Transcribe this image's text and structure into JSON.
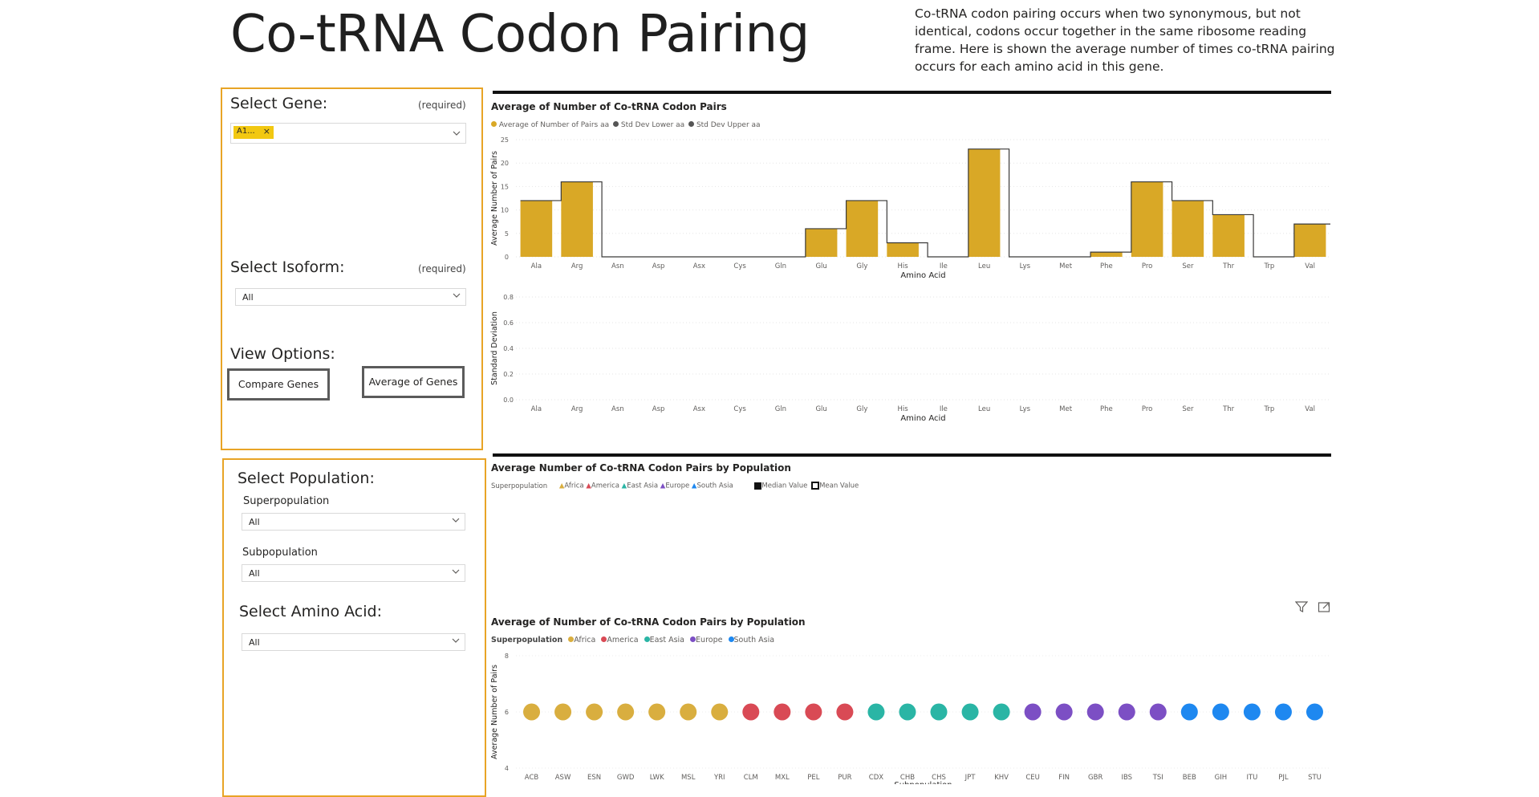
{
  "header": {
    "title": "Co-tRNA Codon Pairing",
    "description": "Co-tRNA codon pairing occurs when two synonymous, but not identical, codons occur together in the same ribosome reading frame. Here is shown the average number of times co-tRNA pairing occurs for each amino acid in this gene."
  },
  "filters_top": {
    "gene_label": "Select Gene:",
    "gene_required": "(required)",
    "gene_chip": "A1...",
    "isoform_label": "Select Isoform:",
    "isoform_required": "(required)",
    "isoform_value": "All",
    "view_options_label": "View Options:",
    "compare_button": "Compare Genes",
    "average_button": "Average of Genes"
  },
  "filters_bottom": {
    "population_label": "Select Population:",
    "superpop_label": "Superpopulation",
    "superpop_value": "All",
    "subpop_label": "Subpopulation",
    "subpop_value": "All",
    "amino_label": "Select Amino Acid:",
    "amino_value": "All"
  },
  "icons": {
    "filter": "filter-icon",
    "focus": "focus-mode-icon",
    "chevron": "chevron-down-icon",
    "remove": "close-icon"
  },
  "colors": {
    "gold": "#d9a826",
    "africa": "#d9ae3f",
    "america": "#d94a55",
    "east_asia": "#2ab5a5",
    "europe": "#7c4fc4",
    "south_asia": "#1e88f0",
    "panel_border": "#e8a426"
  },
  "chart_data": [
    {
      "type": "bar",
      "title": "Average of Number of Co-tRNA Codon Pairs",
      "xlabel": "Amino Acid",
      "ylabel": "Average Number of Pairs",
      "legend": [
        "Average of Number of Pairs aa",
        "Std Dev Lower aa",
        "Std Dev Upper aa"
      ],
      "categories": [
        "Ala",
        "Arg",
        "Asn",
        "Asp",
        "Asx",
        "Cys",
        "Gln",
        "Glu",
        "Gly",
        "His",
        "Ile",
        "Leu",
        "Lys",
        "Met",
        "Phe",
        "Pro",
        "Ser",
        "Thr",
        "Trp",
        "Val"
      ],
      "series": [
        {
          "name": "Average of Number of Pairs aa",
          "values": [
            12,
            16,
            0,
            0,
            0,
            0,
            0,
            6,
            12,
            3,
            0,
            23,
            0,
            0,
            1,
            16,
            12,
            9,
            0,
            7
          ]
        },
        {
          "name": "Std Dev Lower aa",
          "values": [
            12,
            16,
            0,
            0,
            0,
            0,
            0,
            6,
            12,
            3,
            0,
            23,
            0,
            0,
            1,
            16,
            12,
            9,
            0,
            7
          ]
        },
        {
          "name": "Std Dev Upper aa",
          "values": [
            12,
            16,
            0,
            0,
            0,
            0,
            0,
            6,
            12,
            3,
            0,
            23,
            0,
            0,
            1,
            16,
            12,
            9,
            0,
            7
          ]
        }
      ],
      "yticks": [
        "25",
        "20",
        "15",
        "10",
        "5",
        "0"
      ],
      "ylim": [
        0,
        25
      ]
    },
    {
      "type": "bar",
      "title": "",
      "xlabel": "Amino Acid",
      "ylabel": "Standard Deviation",
      "categories": [
        "Ala",
        "Arg",
        "Asn",
        "Asp",
        "Asx",
        "Cys",
        "Gln",
        "Glu",
        "Gly",
        "His",
        "Ile",
        "Leu",
        "Lys",
        "Met",
        "Phe",
        "Pro",
        "Ser",
        "Thr",
        "Trp",
        "Val"
      ],
      "values": [
        0,
        0,
        0,
        0,
        0,
        0,
        0,
        0,
        0,
        0,
        0,
        0,
        0,
        0,
        0,
        0,
        0,
        0,
        0,
        0
      ],
      "yticks": [
        "0.8",
        "0.6",
        "0.4",
        "0.2",
        "0.0"
      ],
      "ylim": [
        0,
        0.8
      ]
    },
    {
      "type": "scatter",
      "title": "Average Number of Co-tRNA Codon Pairs by Population",
      "legend_title": "Superpopulation",
      "legend": [
        "Africa",
        "America",
        "East Asia",
        "Europe",
        "South Asia"
      ],
      "extra_legend": [
        "Median Value",
        "Mean Value"
      ],
      "series": []
    },
    {
      "type": "scatter",
      "title": "Average of Number of Co-tRNA Codon Pairs by Population",
      "legend_title": "Superpopulation",
      "legend": [
        "Africa",
        "America",
        "East Asia",
        "Europe",
        "South Asia"
      ],
      "xlabel": "Subpopulation",
      "ylabel": "Average Number of Pairs",
      "yticks": [
        "8",
        "6",
        "4"
      ],
      "ylim": [
        4,
        8
      ],
      "categories": [
        "ACB",
        "ASW",
        "ESN",
        "GWD",
        "LWK",
        "MSL",
        "YRI",
        "CLM",
        "MXL",
        "PEL",
        "PUR",
        "CDX",
        "CHB",
        "CHS",
        "JPT",
        "KHV",
        "CEU",
        "FIN",
        "GBR",
        "IBS",
        "TSI",
        "BEB",
        "GIH",
        "ITU",
        "PJL",
        "STU"
      ],
      "superpopulation": [
        "Africa",
        "Africa",
        "Africa",
        "Africa",
        "Africa",
        "Africa",
        "Africa",
        "America",
        "America",
        "America",
        "America",
        "East Asia",
        "East Asia",
        "East Asia",
        "East Asia",
        "East Asia",
        "Europe",
        "Europe",
        "Europe",
        "Europe",
        "Europe",
        "South Asia",
        "South Asia",
        "South Asia",
        "South Asia",
        "South Asia"
      ],
      "values": [
        6,
        6,
        6,
        6,
        6,
        6,
        6,
        6,
        6,
        6,
        6,
        6,
        6,
        6,
        6,
        6,
        6,
        6,
        6,
        6,
        6,
        6,
        6,
        6,
        6,
        6
      ]
    }
  ]
}
